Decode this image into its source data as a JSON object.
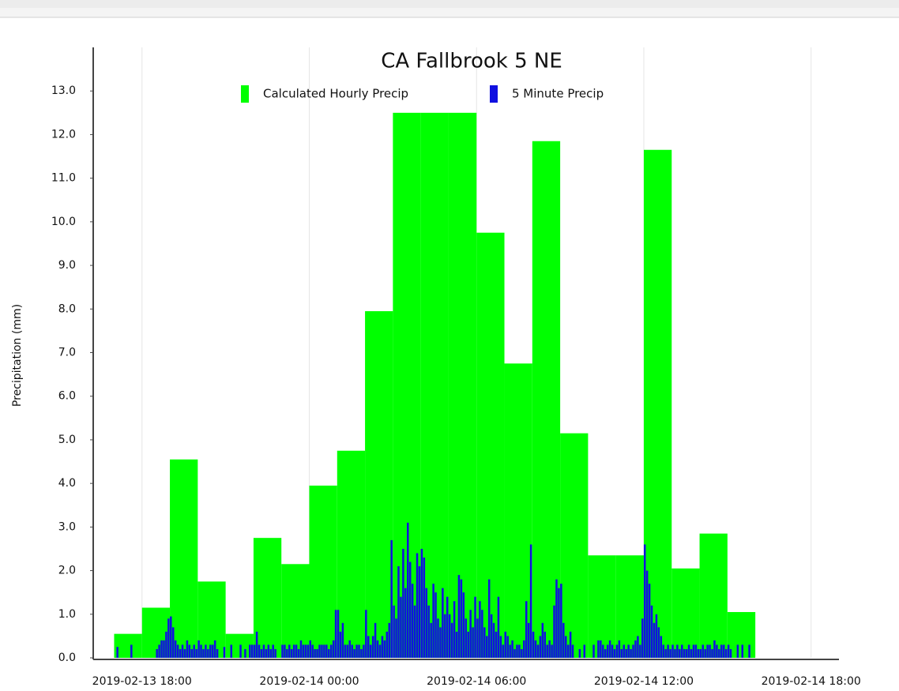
{
  "chart_data": {
    "type": "bar",
    "title": "CA Fallbrook 5 NE",
    "y_label": "Precipitation (mm)",
    "xlim": [
      "2019-02-13 16:15",
      "2019-02-14 19:00"
    ],
    "xticks": [
      "2019-02-13 18:00",
      "2019-02-14 00:00",
      "2019-02-14 06:00",
      "2019-02-14 12:00",
      "2019-02-14 18:00"
    ],
    "ylim": [
      0,
      14
    ],
    "yticks": [
      {
        "value": 0,
        "label": "0.0"
      },
      {
        "value": 1,
        "label": "1.0"
      },
      {
        "value": 2,
        "label": "2.0"
      },
      {
        "value": 3,
        "label": "3.0"
      },
      {
        "value": 4,
        "label": "4.0"
      },
      {
        "value": 5,
        "label": "5.0"
      },
      {
        "value": 6,
        "label": "6.0"
      },
      {
        "value": 7,
        "label": "7.0"
      },
      {
        "value": 8,
        "label": "8.0"
      },
      {
        "value": 9,
        "label": "9.0"
      },
      {
        "value": 10,
        "label": "10.0"
      },
      {
        "value": 11,
        "label": "11.0"
      },
      {
        "value": 12,
        "label": "12.0"
      },
      {
        "value": 13,
        "label": "13.0"
      }
    ],
    "grid": true,
    "legend": "top",
    "series": [
      {
        "name": "Calculated Hourly Precip",
        "color": "#00ff00",
        "x": [
          "2019-02-13 17:00",
          "2019-02-13 18:00",
          "2019-02-13 19:00",
          "2019-02-13 20:00",
          "2019-02-13 21:00",
          "2019-02-13 22:00",
          "2019-02-13 23:00",
          "2019-02-14 00:00",
          "2019-02-14 01:00",
          "2019-02-14 02:00",
          "2019-02-14 03:00",
          "2019-02-14 04:00",
          "2019-02-14 05:00",
          "2019-02-14 06:00",
          "2019-02-14 07:00",
          "2019-02-14 08:00",
          "2019-02-14 09:00",
          "2019-02-14 10:00",
          "2019-02-14 11:00",
          "2019-02-14 12:00",
          "2019-02-14 13:00",
          "2019-02-14 14:00",
          "2019-02-14 15:00"
        ],
        "values": [
          0.55,
          1.15,
          4.55,
          1.75,
          0.55,
          2.75,
          2.15,
          3.95,
          4.75,
          7.95,
          12.5,
          12.5,
          12.5,
          9.75,
          6.75,
          11.85,
          5.15,
          2.35,
          2.35,
          11.65,
          2.05,
          2.85,
          1.05
        ]
      },
      {
        "name": "5 Minute Precip",
        "color": "#1010e0",
        "x": [
          "2019-02-13 17:00",
          "2019-02-13 17:05",
          "2019-02-13 17:10",
          "2019-02-13 17:15",
          "2019-02-13 17:20",
          "2019-02-13 17:25",
          "2019-02-13 17:30",
          "2019-02-13 17:35",
          "2019-02-13 17:40",
          "2019-02-13 17:45",
          "2019-02-13 17:50",
          "2019-02-13 17:55",
          "2019-02-13 18:00",
          "2019-02-13 18:05",
          "2019-02-13 18:10",
          "2019-02-13 18:15",
          "2019-02-13 18:20",
          "2019-02-13 18:25",
          "2019-02-13 18:30",
          "2019-02-13 18:35",
          "2019-02-13 18:40",
          "2019-02-13 18:45",
          "2019-02-13 18:50",
          "2019-02-13 18:55",
          "2019-02-13 19:00",
          "2019-02-13 19:05",
          "2019-02-13 19:10",
          "2019-02-13 19:15",
          "2019-02-13 19:20",
          "2019-02-13 19:25",
          "2019-02-13 19:30",
          "2019-02-13 19:35",
          "2019-02-13 19:40",
          "2019-02-13 19:45",
          "2019-02-13 19:50",
          "2019-02-13 19:55",
          "2019-02-13 20:00",
          "2019-02-13 20:05",
          "2019-02-13 20:10",
          "2019-02-13 20:15",
          "2019-02-13 20:20",
          "2019-02-13 20:25",
          "2019-02-13 20:30",
          "2019-02-13 20:35",
          "2019-02-13 20:40",
          "2019-02-13 20:45",
          "2019-02-13 20:50",
          "2019-02-13 20:55",
          "2019-02-13 21:00",
          "2019-02-13 21:05",
          "2019-02-13 21:10",
          "2019-02-13 21:15",
          "2019-02-13 21:20",
          "2019-02-13 21:25",
          "2019-02-13 21:30",
          "2019-02-13 21:35",
          "2019-02-13 21:40",
          "2019-02-13 21:45",
          "2019-02-13 21:50",
          "2019-02-13 21:55",
          "2019-02-13 22:00",
          "2019-02-13 22:05",
          "2019-02-13 22:10",
          "2019-02-13 22:15",
          "2019-02-13 22:20",
          "2019-02-13 22:25",
          "2019-02-13 22:30",
          "2019-02-13 22:35",
          "2019-02-13 22:40",
          "2019-02-13 22:45",
          "2019-02-13 22:50",
          "2019-02-13 22:55",
          "2019-02-13 23:00",
          "2019-02-13 23:05",
          "2019-02-13 23:10",
          "2019-02-13 23:15",
          "2019-02-13 23:20",
          "2019-02-13 23:25",
          "2019-02-13 23:30",
          "2019-02-13 23:35",
          "2019-02-13 23:40",
          "2019-02-13 23:45",
          "2019-02-13 23:50",
          "2019-02-13 23:55",
          "2019-02-14 00:00",
          "2019-02-14 00:05",
          "2019-02-14 00:10",
          "2019-02-14 00:15",
          "2019-02-14 00:20",
          "2019-02-14 00:25",
          "2019-02-14 00:30",
          "2019-02-14 00:35",
          "2019-02-14 00:40",
          "2019-02-14 00:45",
          "2019-02-14 00:50",
          "2019-02-14 00:55",
          "2019-02-14 01:00",
          "2019-02-14 01:05",
          "2019-02-14 01:10",
          "2019-02-14 01:15",
          "2019-02-14 01:20",
          "2019-02-14 01:25",
          "2019-02-14 01:30",
          "2019-02-14 01:35",
          "2019-02-14 01:40",
          "2019-02-14 01:45",
          "2019-02-14 01:50",
          "2019-02-14 01:55",
          "2019-02-14 02:00",
          "2019-02-14 02:05",
          "2019-02-14 02:10",
          "2019-02-14 02:15",
          "2019-02-14 02:20",
          "2019-02-14 02:25",
          "2019-02-14 02:30",
          "2019-02-14 02:35",
          "2019-02-14 02:40",
          "2019-02-14 02:45",
          "2019-02-14 02:50",
          "2019-02-14 02:55",
          "2019-02-14 03:00",
          "2019-02-14 03:05",
          "2019-02-14 03:10",
          "2019-02-14 03:15",
          "2019-02-14 03:20",
          "2019-02-14 03:25",
          "2019-02-14 03:30",
          "2019-02-14 03:35",
          "2019-02-14 03:40",
          "2019-02-14 03:45",
          "2019-02-14 03:50",
          "2019-02-14 03:55",
          "2019-02-14 04:00",
          "2019-02-14 04:05",
          "2019-02-14 04:10",
          "2019-02-14 04:15",
          "2019-02-14 04:20",
          "2019-02-14 04:25",
          "2019-02-14 04:30",
          "2019-02-14 04:35",
          "2019-02-14 04:40",
          "2019-02-14 04:45",
          "2019-02-14 04:50",
          "2019-02-14 04:55",
          "2019-02-14 05:00",
          "2019-02-14 05:05",
          "2019-02-14 05:10",
          "2019-02-14 05:15",
          "2019-02-14 05:20",
          "2019-02-14 05:25",
          "2019-02-14 05:30",
          "2019-02-14 05:35",
          "2019-02-14 05:40",
          "2019-02-14 05:45",
          "2019-02-14 05:50",
          "2019-02-14 05:55",
          "2019-02-14 06:00",
          "2019-02-14 06:05",
          "2019-02-14 06:10",
          "2019-02-14 06:15",
          "2019-02-14 06:20",
          "2019-02-14 06:25",
          "2019-02-14 06:30",
          "2019-02-14 06:35",
          "2019-02-14 06:40",
          "2019-02-14 06:45",
          "2019-02-14 06:50",
          "2019-02-14 06:55",
          "2019-02-14 07:00",
          "2019-02-14 07:05",
          "2019-02-14 07:10",
          "2019-02-14 07:15",
          "2019-02-14 07:20",
          "2019-02-14 07:25",
          "2019-02-14 07:30",
          "2019-02-14 07:35",
          "2019-02-14 07:40",
          "2019-02-14 07:45",
          "2019-02-14 07:50",
          "2019-02-14 07:55",
          "2019-02-14 08:00",
          "2019-02-14 08:05",
          "2019-02-14 08:10",
          "2019-02-14 08:15",
          "2019-02-14 08:20",
          "2019-02-14 08:25",
          "2019-02-14 08:30",
          "2019-02-14 08:35",
          "2019-02-14 08:40",
          "2019-02-14 08:45",
          "2019-02-14 08:50",
          "2019-02-14 08:55",
          "2019-02-14 09:00",
          "2019-02-14 09:05",
          "2019-02-14 09:10",
          "2019-02-14 09:15",
          "2019-02-14 09:20",
          "2019-02-14 09:25",
          "2019-02-14 09:30",
          "2019-02-14 09:35",
          "2019-02-14 09:40",
          "2019-02-14 09:45",
          "2019-02-14 09:50",
          "2019-02-14 09:55",
          "2019-02-14 10:00",
          "2019-02-14 10:05",
          "2019-02-14 10:10",
          "2019-02-14 10:15",
          "2019-02-14 10:20",
          "2019-02-14 10:25",
          "2019-02-14 10:30",
          "2019-02-14 10:35",
          "2019-02-14 10:40",
          "2019-02-14 10:45",
          "2019-02-14 10:50",
          "2019-02-14 10:55",
          "2019-02-14 11:00",
          "2019-02-14 11:05",
          "2019-02-14 11:10",
          "2019-02-14 11:15",
          "2019-02-14 11:20",
          "2019-02-14 11:25",
          "2019-02-14 11:30",
          "2019-02-14 11:35",
          "2019-02-14 11:40",
          "2019-02-14 11:45",
          "2019-02-14 11:50",
          "2019-02-14 11:55",
          "2019-02-14 12:00",
          "2019-02-14 12:05",
          "2019-02-14 12:10",
          "2019-02-14 12:15",
          "2019-02-14 12:20",
          "2019-02-14 12:25",
          "2019-02-14 12:30",
          "2019-02-14 12:35",
          "2019-02-14 12:40",
          "2019-02-14 12:45",
          "2019-02-14 12:50",
          "2019-02-14 12:55",
          "2019-02-14 13:00",
          "2019-02-14 13:05",
          "2019-02-14 13:10",
          "2019-02-14 13:15",
          "2019-02-14 13:20",
          "2019-02-14 13:25",
          "2019-02-14 13:30",
          "2019-02-14 13:35",
          "2019-02-14 13:40",
          "2019-02-14 13:45",
          "2019-02-14 13:50",
          "2019-02-14 13:55",
          "2019-02-14 14:00",
          "2019-02-14 14:05",
          "2019-02-14 14:10",
          "2019-02-14 14:15",
          "2019-02-14 14:20",
          "2019-02-14 14:25",
          "2019-02-14 14:30",
          "2019-02-14 14:35",
          "2019-02-14 14:40",
          "2019-02-14 14:45",
          "2019-02-14 14:50",
          "2019-02-14 14:55",
          "2019-02-14 15:00",
          "2019-02-14 15:05",
          "2019-02-14 15:10",
          "2019-02-14 15:15",
          "2019-02-14 15:20",
          "2019-02-14 15:25",
          "2019-02-14 15:30",
          "2019-02-14 15:35",
          "2019-02-14 15:40",
          "2019-02-14 15:45",
          "2019-02-14 15:50",
          "2019-02-14 15:55"
        ],
        "values": [
          0,
          0.25,
          0,
          0,
          0,
          0,
          0,
          0.3,
          0,
          0,
          0,
          0,
          0,
          0,
          0,
          0,
          0,
          0,
          0.2,
          0.3,
          0.4,
          0.4,
          0.6,
          0.9,
          0.95,
          0.7,
          0.4,
          0.3,
          0.2,
          0.3,
          0.2,
          0.4,
          0.3,
          0.2,
          0.3,
          0.2,
          0.4,
          0.3,
          0.2,
          0.3,
          0.2,
          0.3,
          0.3,
          0.4,
          0.2,
          0,
          0,
          0.25,
          0,
          0,
          0.3,
          0,
          0,
          0,
          0.3,
          0,
          0.2,
          0,
          0.3,
          0.3,
          0.3,
          0.6,
          0.3,
          0.2,
          0.3,
          0.2,
          0.3,
          0.2,
          0.3,
          0.2,
          0,
          0,
          0.3,
          0.3,
          0.2,
          0.3,
          0.2,
          0.3,
          0.3,
          0.2,
          0.4,
          0.3,
          0.3,
          0.3,
          0.4,
          0.3,
          0.2,
          0.2,
          0.3,
          0.3,
          0.3,
          0.3,
          0.2,
          0.3,
          0.4,
          1.1,
          1.1,
          0.6,
          0.8,
          0.3,
          0.3,
          0.4,
          0.3,
          0.2,
          0.3,
          0.3,
          0.2,
          0.3,
          1.1,
          0.5,
          0.3,
          0.5,
          0.8,
          0.4,
          0.3,
          0.5,
          0.4,
          0.6,
          0.8,
          2.7,
          1.2,
          0.9,
          2.1,
          1.4,
          2.5,
          1.6,
          3.1,
          2.2,
          1.7,
          1.2,
          2.4,
          2.1,
          2.5,
          2.3,
          1.6,
          1.2,
          0.8,
          1.7,
          1.5,
          0.9,
          0.7,
          1.6,
          1.0,
          1.4,
          1.0,
          0.8,
          1.3,
          0.6,
          1.9,
          1.8,
          1.5,
          0.9,
          0.6,
          1.1,
          0.7,
          1.4,
          0.9,
          1.3,
          1.1,
          0.7,
          0.5,
          1.8,
          1.0,
          0.8,
          0.6,
          1.4,
          0.5,
          0.3,
          0.6,
          0.5,
          0.3,
          0.4,
          0.2,
          0.3,
          0.3,
          0.2,
          0.4,
          1.3,
          0.8,
          2.6,
          0.6,
          0.4,
          0.3,
          0.5,
          0.8,
          0.6,
          0.3,
          0.4,
          0.3,
          1.2,
          1.8,
          1.6,
          1.7,
          0.8,
          0.5,
          0.3,
          0.6,
          0.3,
          0,
          0,
          0.2,
          0,
          0.3,
          0,
          0,
          0,
          0.3,
          0,
          0.4,
          0.4,
          0.3,
          0.2,
          0.3,
          0.4,
          0.3,
          0.2,
          0.3,
          0.4,
          0.2,
          0.3,
          0.2,
          0.3,
          0.2,
          0.3,
          0.4,
          0.5,
          0.3,
          0.9,
          2.6,
          2.0,
          1.7,
          1.2,
          0.8,
          1.0,
          0.7,
          0.5,
          0.3,
          0.2,
          0.3,
          0.2,
          0.3,
          0.2,
          0.3,
          0.2,
          0.3,
          0.2,
          0.2,
          0.3,
          0.2,
          0.3,
          0.3,
          0.2,
          0.2,
          0.3,
          0.2,
          0.3,
          0.3,
          0.2,
          0.4,
          0.3,
          0.2,
          0.3,
          0.3,
          0.2,
          0.3,
          0.2,
          0,
          0,
          0.3,
          0,
          0.3,
          0,
          0,
          0.3,
          0,
          0
        ]
      }
    ]
  }
}
